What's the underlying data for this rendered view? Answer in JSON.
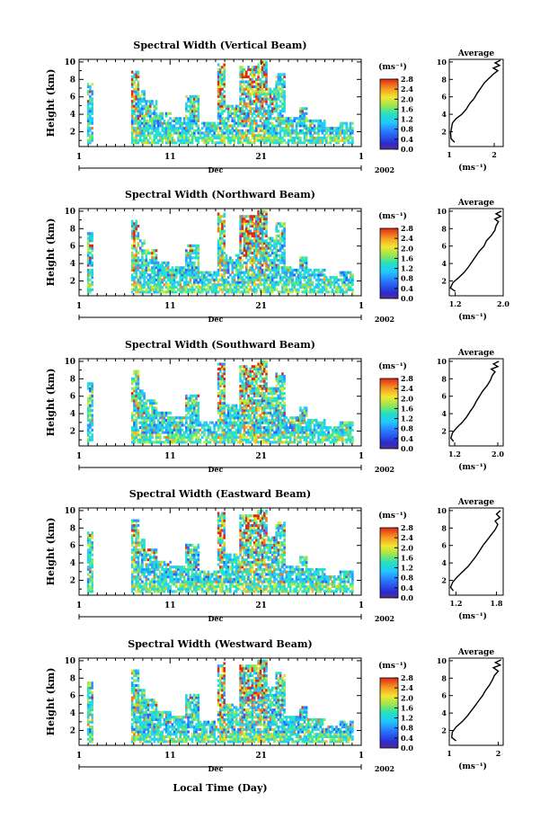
{
  "xlabel_bottom": "Local Time (Day)",
  "chart_data": [
    {
      "type": "heatmap",
      "title": "Spectral Width (Vertical Beam)",
      "ylabel": "Height (km)",
      "ylim": [
        0.3,
        10.3
      ],
      "yticks": [
        "2",
        "4",
        "6",
        "8",
        "10"
      ],
      "xlim": [
        1,
        32
      ],
      "xticks": [
        "1",
        "11",
        "21",
        "1"
      ],
      "x_month": "Dec",
      "x_year": "2002",
      "colorbar": {
        "unit": "(ms⁻¹)",
        "range": [
          0.0,
          2.8
        ],
        "ticks": [
          "0.0",
          "0.4",
          "0.8",
          "1.2",
          "1.6",
          "2.0",
          "2.4",
          "2.8"
        ]
      },
      "profile": {
        "title": "Average",
        "xlabel": "(ms⁻¹)",
        "xlim": [
          1.0,
          2.2
        ],
        "xticks": [
          "1",
          "2"
        ],
        "ylim": [
          0.3,
          10.3
        ],
        "yticks": [
          "2",
          "4",
          "6",
          "8",
          "10"
        ],
        "points": [
          [
            1.12,
            0.8
          ],
          [
            1.04,
            1.2
          ],
          [
            1.03,
            1.8
          ],
          [
            1.05,
            2.4
          ],
          [
            1.07,
            3.0
          ],
          [
            1.15,
            3.5
          ],
          [
            1.28,
            4.0
          ],
          [
            1.38,
            4.6
          ],
          [
            1.45,
            5.2
          ],
          [
            1.55,
            5.8
          ],
          [
            1.62,
            6.4
          ],
          [
            1.7,
            7.0
          ],
          [
            1.78,
            7.6
          ],
          [
            1.88,
            8.1
          ],
          [
            1.98,
            8.6
          ],
          [
            2.08,
            9.0
          ],
          [
            1.98,
            9.3
          ],
          [
            2.12,
            9.6
          ],
          [
            2.02,
            9.9
          ],
          [
            2.14,
            10.2
          ]
        ]
      }
    },
    {
      "type": "heatmap",
      "title": "Spectral Width (Northward Beam)",
      "ylabel": "Height (km)",
      "ylim": [
        0.3,
        10.3
      ],
      "yticks": [
        "2",
        "4",
        "6",
        "8",
        "10"
      ],
      "xlim": [
        1,
        32
      ],
      "xticks": [
        "1",
        "11",
        "21",
        "1"
      ],
      "x_month": "Dec",
      "x_year": "2002",
      "colorbar": {
        "unit": "(ms⁻¹)",
        "range": [
          0.0,
          2.8
        ],
        "ticks": [
          "0.0",
          "0.4",
          "0.8",
          "1.2",
          "1.6",
          "2.0",
          "2.4",
          "2.8"
        ]
      },
      "profile": {
        "title": "Average",
        "xlabel": "(ms⁻¹)",
        "xlim": [
          1.1,
          2.0
        ],
        "xticks": [
          "1.2",
          "2.0"
        ],
        "ylim": [
          0.3,
          10.3
        ],
        "yticks": [
          "2",
          "4",
          "6",
          "8",
          "10"
        ],
        "points": [
          [
            1.2,
            0.8
          ],
          [
            1.12,
            1.2
          ],
          [
            1.16,
            1.8
          ],
          [
            1.26,
            2.4
          ],
          [
            1.35,
            3.0
          ],
          [
            1.42,
            3.6
          ],
          [
            1.48,
            4.2
          ],
          [
            1.54,
            4.8
          ],
          [
            1.6,
            5.4
          ],
          [
            1.68,
            6.0
          ],
          [
            1.72,
            6.6
          ],
          [
            1.8,
            7.2
          ],
          [
            1.86,
            7.8
          ],
          [
            1.88,
            8.3
          ],
          [
            1.92,
            8.8
          ],
          [
            1.86,
            9.1
          ],
          [
            1.96,
            9.4
          ],
          [
            1.88,
            9.7
          ],
          [
            1.97,
            10.0
          ]
        ]
      }
    },
    {
      "type": "heatmap",
      "title": "Spectral Width (Southward Beam)",
      "ylabel": "Height (km)",
      "ylim": [
        0.3,
        10.3
      ],
      "yticks": [
        "2",
        "4",
        "6",
        "8",
        "10"
      ],
      "xlim": [
        1,
        32
      ],
      "xticks": [
        "1",
        "11",
        "21",
        "1"
      ],
      "x_month": "Dec",
      "x_year": "2002",
      "colorbar": {
        "unit": "(ms⁻¹)",
        "range": [
          0.0,
          2.8
        ],
        "ticks": [
          "0.0",
          "0.4",
          "0.8",
          "1.2",
          "1.6",
          "2.0",
          "2.4",
          "2.8"
        ]
      },
      "profile": {
        "title": "Average",
        "xlabel": "(ms⁻¹)",
        "xlim": [
          1.1,
          2.1
        ],
        "xticks": [
          "1.2",
          "2.0"
        ],
        "ylim": [
          0.3,
          10.3
        ],
        "yticks": [
          "2",
          "4",
          "6",
          "8",
          "10"
        ],
        "points": [
          [
            1.18,
            0.8
          ],
          [
            1.13,
            1.2
          ],
          [
            1.16,
            1.8
          ],
          [
            1.24,
            2.4
          ],
          [
            1.34,
            3.0
          ],
          [
            1.42,
            3.6
          ],
          [
            1.48,
            4.2
          ],
          [
            1.55,
            4.8
          ],
          [
            1.6,
            5.4
          ],
          [
            1.66,
            6.0
          ],
          [
            1.72,
            6.6
          ],
          [
            1.8,
            7.2
          ],
          [
            1.86,
            7.8
          ],
          [
            1.9,
            8.4
          ],
          [
            1.95,
            8.8
          ],
          [
            1.88,
            9.1
          ],
          [
            2.0,
            9.4
          ],
          [
            1.92,
            9.7
          ],
          [
            2.02,
            10.0
          ]
        ]
      }
    },
    {
      "type": "heatmap",
      "title": "Spectral Width (Eastward Beam)",
      "ylabel": "Height (km)",
      "ylim": [
        0.3,
        10.3
      ],
      "yticks": [
        "2",
        "4",
        "6",
        "8",
        "10"
      ],
      "xlim": [
        1,
        32
      ],
      "xticks": [
        "1",
        "11",
        "21",
        "1"
      ],
      "x_month": "Dec",
      "x_year": "2002",
      "colorbar": {
        "unit": "(ms⁻¹)",
        "range": [
          0.0,
          2.8
        ],
        "ticks": [
          "0.0",
          "0.4",
          "0.8",
          "1.2",
          "1.6",
          "2.0",
          "2.4",
          "2.8"
        ]
      },
      "profile": {
        "title": "Average",
        "xlabel": "(ms⁻¹)",
        "xlim": [
          1.1,
          1.9
        ],
        "xticks": [
          "1.2",
          "1.8"
        ],
        "ylim": [
          0.3,
          10.3
        ],
        "yticks": [
          "2",
          "4",
          "6",
          "8",
          "10"
        ],
        "points": [
          [
            1.16,
            0.8
          ],
          [
            1.12,
            1.2
          ],
          [
            1.15,
            1.8
          ],
          [
            1.22,
            2.4
          ],
          [
            1.3,
            3.0
          ],
          [
            1.38,
            3.6
          ],
          [
            1.44,
            4.2
          ],
          [
            1.5,
            4.8
          ],
          [
            1.55,
            5.4
          ],
          [
            1.6,
            6.0
          ],
          [
            1.66,
            6.6
          ],
          [
            1.72,
            7.2
          ],
          [
            1.78,
            7.8
          ],
          [
            1.82,
            8.4
          ],
          [
            1.78,
            8.8
          ],
          [
            1.85,
            9.2
          ],
          [
            1.8,
            9.6
          ],
          [
            1.86,
            10.0
          ]
        ]
      }
    },
    {
      "type": "heatmap",
      "title": "Spectral Width (Westward Beam)",
      "ylabel": "Height (km)",
      "ylim": [
        0.3,
        10.3
      ],
      "yticks": [
        "2",
        "4",
        "6",
        "8",
        "10"
      ],
      "xlim": [
        1,
        32
      ],
      "xticks": [
        "1",
        "11",
        "21",
        "1"
      ],
      "x_month": "Dec",
      "x_year": "2002",
      "colorbar": {
        "unit": "(ms⁻¹)",
        "range": [
          0.0,
          2.8
        ],
        "ticks": [
          "0.0",
          "0.4",
          "0.8",
          "1.2",
          "1.6",
          "2.0",
          "2.4",
          "2.8"
        ]
      },
      "profile": {
        "title": "Average",
        "xlabel": "(ms⁻¹)",
        "xlim": [
          1.0,
          2.1
        ],
        "xticks": [
          "1",
          "2"
        ],
        "ylim": [
          0.3,
          10.3
        ],
        "yticks": [
          "2",
          "4",
          "6",
          "8",
          "10"
        ],
        "points": [
          [
            1.14,
            0.8
          ],
          [
            1.05,
            1.2
          ],
          [
            1.06,
            1.8
          ],
          [
            1.14,
            2.4
          ],
          [
            1.26,
            3.0
          ],
          [
            1.36,
            3.6
          ],
          [
            1.44,
            4.2
          ],
          [
            1.52,
            4.8
          ],
          [
            1.6,
            5.4
          ],
          [
            1.68,
            6.0
          ],
          [
            1.74,
            6.6
          ],
          [
            1.82,
            7.2
          ],
          [
            1.88,
            7.8
          ],
          [
            1.92,
            8.3
          ],
          [
            2.0,
            8.8
          ],
          [
            1.9,
            9.2
          ],
          [
            2.04,
            9.5
          ],
          [
            1.94,
            9.8
          ],
          [
            2.06,
            10.1
          ]
        ]
      }
    }
  ]
}
